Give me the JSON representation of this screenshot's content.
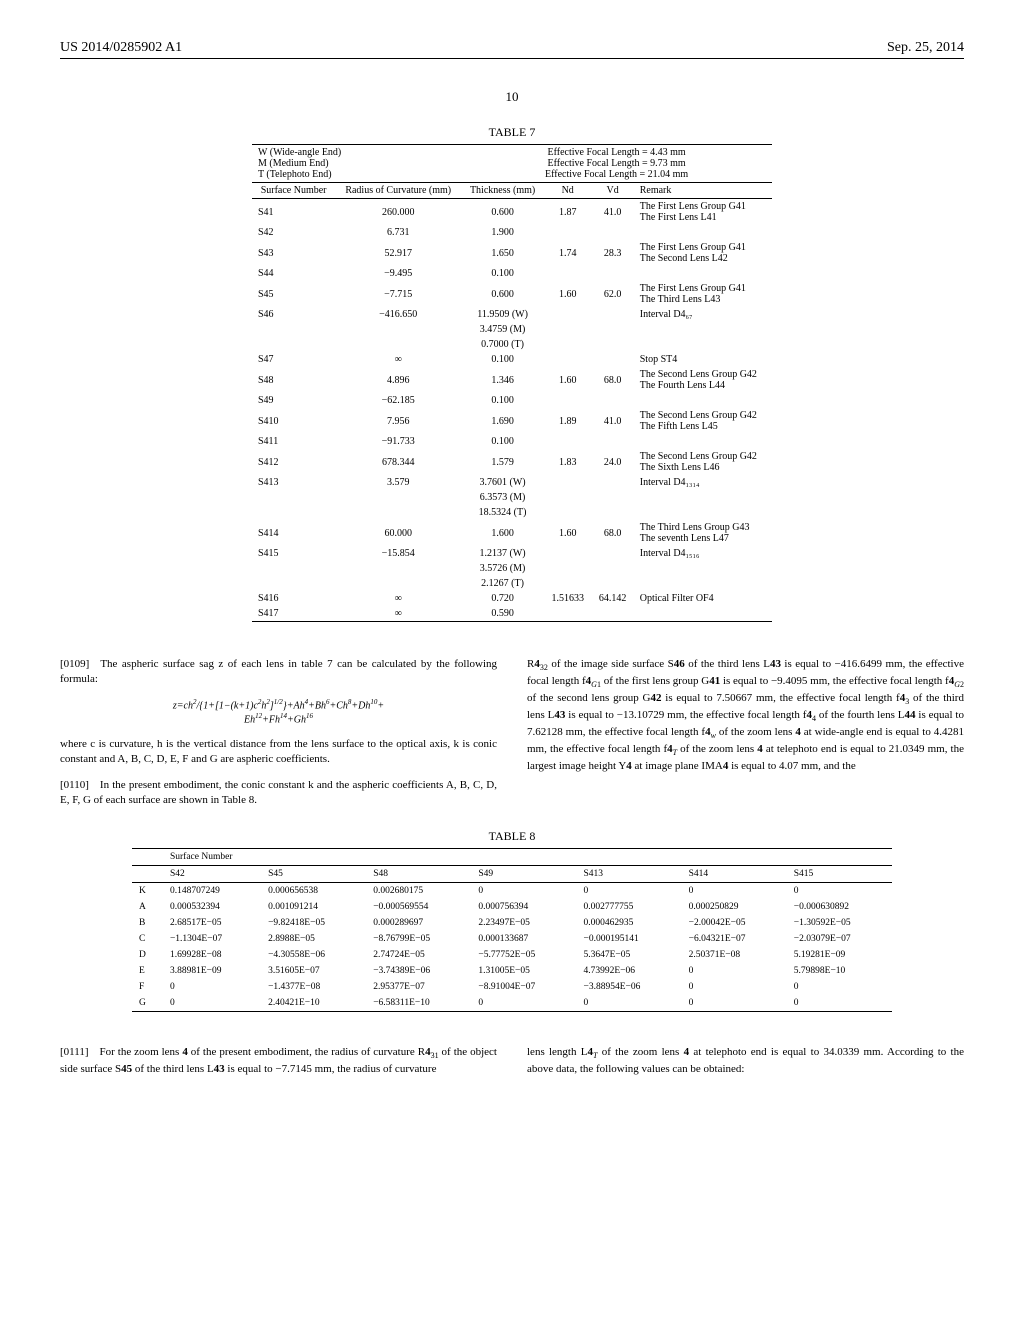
{
  "header": {
    "pub_num": "US 2014/0285902 A1",
    "pub_date": "Sep. 25, 2014",
    "page": "10"
  },
  "table7": {
    "title": "TABLE 7",
    "mode_labels": {
      "w": "W (Wide-angle End)",
      "m": "M (Medium End)",
      "t": "T (Telephoto End)"
    },
    "efl_labels": {
      "w": "Effective Focal Length = 4.43 mm",
      "m": "Effective Focal Length = 9.73 mm",
      "t": "Effective Focal Length = 21.04 mm"
    },
    "columns": {
      "surf": "Surface Number",
      "roc": "Radius of Curvature (mm)",
      "thk": "Thickness (mm)",
      "nd": "Nd",
      "vd": "Vd",
      "remark": "Remark"
    },
    "rows": [
      {
        "n": "S41",
        "roc": "260.000",
        "thk": "0.600",
        "nd": "1.87",
        "vd": "41.0",
        "rem1": "The First Lens Group G41",
        "rem2": "The First Lens L41"
      },
      {
        "n": "S42",
        "roc": "6.731",
        "thk": "1.900",
        "nd": "",
        "vd": "",
        "rem1": "",
        "rem2": ""
      },
      {
        "n": "S43",
        "roc": "52.917",
        "thk": "1.650",
        "nd": "1.74",
        "vd": "28.3",
        "rem1": "The First Lens Group G41",
        "rem2": "The Second Lens L42"
      },
      {
        "n": "S44",
        "roc": "−9.495",
        "thk": "0.100",
        "nd": "",
        "vd": "",
        "rem1": "",
        "rem2": ""
      },
      {
        "n": "S45",
        "roc": "−7.715",
        "thk": "0.600",
        "nd": "1.60",
        "vd": "62.0",
        "rem1": "The First Lens Group G41",
        "rem2": "The Third Lens L43"
      },
      {
        "n": "S46",
        "roc": "−416.650",
        "thk": "11.9509 (W)",
        "nd": "",
        "vd": "",
        "rem1": "Interval D4₆₇",
        "rem2": ""
      },
      {
        "n": "",
        "roc": "",
        "thk": "3.4759 (M)",
        "nd": "",
        "vd": "",
        "rem1": "",
        "rem2": ""
      },
      {
        "n": "",
        "roc": "",
        "thk": "0.7000 (T)",
        "nd": "",
        "vd": "",
        "rem1": "",
        "rem2": ""
      },
      {
        "n": "S47",
        "roc": "∞",
        "thk": "0.100",
        "nd": "",
        "vd": "",
        "rem1": "Stop ST4",
        "rem2": ""
      },
      {
        "n": "S48",
        "roc": "4.896",
        "thk": "1.346",
        "nd": "1.60",
        "vd": "68.0",
        "rem1": "The Second Lens Group G42",
        "rem2": "The Fourth Lens L44"
      },
      {
        "n": "S49",
        "roc": "−62.185",
        "thk": "0.100",
        "nd": "",
        "vd": "",
        "rem1": "",
        "rem2": ""
      },
      {
        "n": "S410",
        "roc": "7.956",
        "thk": "1.690",
        "nd": "1.89",
        "vd": "41.0",
        "rem1": "The Second Lens Group G42",
        "rem2": "The Fifth Lens L45"
      },
      {
        "n": "S411",
        "roc": "−91.733",
        "thk": "0.100",
        "nd": "",
        "vd": "",
        "rem1": "",
        "rem2": ""
      },
      {
        "n": "S412",
        "roc": "678.344",
        "thk": "1.579",
        "nd": "1.83",
        "vd": "24.0",
        "rem1": "The Second Lens Group G42",
        "rem2": "The Sixth Lens L46"
      },
      {
        "n": "S413",
        "roc": "3.579",
        "thk": "3.7601 (W)",
        "nd": "",
        "vd": "",
        "rem1": "Interval D4₁₃₁₄",
        "rem2": ""
      },
      {
        "n": "",
        "roc": "",
        "thk": "6.3573 (M)",
        "nd": "",
        "vd": "",
        "rem1": "",
        "rem2": ""
      },
      {
        "n": "",
        "roc": "",
        "thk": "18.5324 (T)",
        "nd": "",
        "vd": "",
        "rem1": "",
        "rem2": ""
      },
      {
        "n": "S414",
        "roc": "60.000",
        "thk": "1.600",
        "nd": "1.60",
        "vd": "68.0",
        "rem1": "The Third Lens Group G43",
        "rem2": "The seventh Lens L47"
      },
      {
        "n": "S415",
        "roc": "−15.854",
        "thk": "1.2137 (W)",
        "nd": "",
        "vd": "",
        "rem1": "Interval D4₁₅₁₆",
        "rem2": ""
      },
      {
        "n": "",
        "roc": "",
        "thk": "3.5726 (M)",
        "nd": "",
        "vd": "",
        "rem1": "",
        "rem2": ""
      },
      {
        "n": "",
        "roc": "",
        "thk": "2.1267 (T)",
        "nd": "",
        "vd": "",
        "rem1": "",
        "rem2": ""
      },
      {
        "n": "S416",
        "roc": "∞",
        "thk": "0.720",
        "nd": "1.51633",
        "vd": "64.142",
        "rem1": "Optical Filter OF4",
        "rem2": ""
      },
      {
        "n": "S417",
        "roc": "∞",
        "thk": "0.590",
        "nd": "",
        "vd": "",
        "rem1": "",
        "rem2": ""
      }
    ]
  },
  "body": {
    "p109": "[0109] The aspheric surface sag z of each lens in table 7 can be calculated by the following formula:",
    "formula": "z=ch²/{1+[1−(k+1)c²h²]^{1/2}}+Ah⁴+Bh⁶+Ch⁸+Dh¹⁰+ Eh¹²+Fh¹⁴+Gh¹⁶",
    "p109b": "where c is curvature, h is the vertical distance from the lens surface to the optical axis, k is conic constant and A, B, C, D, E, F and G are aspheric coefficients.",
    "p110": "[0110] In the present embodiment, the conic constant k and the aspheric coefficients A, B, C, D, E, F, G of each surface are shown in Table 8.",
    "p_right": "R4₃₂ of the image side surface S46 of the third lens L43 is equal to −416.6499 mm, the effective focal length f4_G1 of the first lens group G41 is equal to −9.4095 mm, the effective focal length f4_G2 of the second lens group G42 is equal to 7.50667 mm, the effective focal length f4₃ of the third lens L43 is equal to −13.10729 mm, the effective focal length f4₄ of the fourth lens L44 is equal to 7.62128 mm, the effective focal length f4_w of the zoom lens 4 at wide-angle end is equal to 4.4281 mm, the effective focal length f4_T of the zoom lens 4 at telephoto end is equal to 21.0349 mm, the largest image height Y4 at image plane IMA4 is equal to 4.07 mm, and the",
    "p111": "[0111] For the zoom lens 4 of the present embodiment, the radius of curvature R4₃₁ of the object side surface S45 of the third lens L43 is equal to −7.7145 mm, the radius of curvature",
    "p111b": "lens length L4_T of the zoom lens 4 at telephoto end is equal to 34.0339 mm. According to the above data, the following values can be obtained:"
  },
  "table8": {
    "title": "TABLE 8",
    "header": "Surface Number",
    "cols": [
      "",
      "S42",
      "S45",
      "S48",
      "S49",
      "S413",
      "S414",
      "S415"
    ],
    "rows": [
      [
        "K",
        "0.148707249",
        "0.000656538",
        "0.002680175",
        "0",
        "0",
        "0",
        "0"
      ],
      [
        "A",
        "0.000532394",
        "0.001091214",
        "−0.000569554",
        "0.000756394",
        "0.002777755",
        "0.000250829",
        "−0.000630892"
      ],
      [
        "B",
        "2.68517E−05",
        "−9.82418E−05",
        "0.000289697",
        "2.23497E−05",
        "0.000462935",
        "−2.00042E−05",
        "−1.30592E−05"
      ],
      [
        "C",
        "−1.1304E−07",
        "2.8988E−05",
        "−8.76799E−05",
        "0.000133687",
        "−0.000195141",
        "−6.04321E−07",
        "−2.03079E−07"
      ],
      [
        "D",
        "1.69928E−08",
        "−4.30558E−06",
        "2.74724E−05",
        "−5.77752E−05",
        "5.3647E−05",
        "2.50371E−08",
        "5.19281E−09"
      ],
      [
        "E",
        "3.88981E−09",
        "3.51605E−07",
        "−3.74389E−06",
        "1.31005E−05",
        "4.73992E−06",
        "0",
        "5.79898E−10"
      ],
      [
        "F",
        "0",
        "−1.4377E−08",
        "2.95377E−07",
        "−8.91004E−07",
        "−3.88954E−06",
        "0",
        "0"
      ],
      [
        "G",
        "0",
        "2.40421E−10",
        "−6.58311E−10",
        "0",
        "0",
        "0",
        "0"
      ]
    ]
  }
}
